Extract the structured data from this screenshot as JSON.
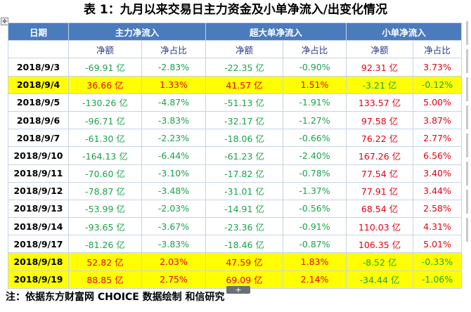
{
  "title": "表 1：九月以来交易日主力资金及小单净流入/出变化情况",
  "headers": {
    "date": "日期",
    "main": "主力净流入",
    "super": "超大单净流入",
    "small": "小单净流入"
  },
  "subheaders": [
    "净额",
    "净占比",
    "净额",
    "净占比",
    "净额",
    "净占比"
  ],
  "rows": [
    {
      "date": "2018/9/3",
      "cells": [
        "-69.91 亿",
        "-2.83%",
        "-22.35 亿",
        "-0.90%",
        "92.31 亿",
        "3.73%"
      ],
      "highlight": false
    },
    {
      "date": "2018/9/4",
      "cells": [
        "36.66 亿",
        "1.33%",
        "41.57 亿",
        "1.51%",
        "-3.21 亿",
        "-0.12%"
      ],
      "highlight": true
    },
    {
      "date": "2018/9/5",
      "cells": [
        "-130.26 亿",
        "-4.87%",
        "-51.13 亿",
        "-1.91%",
        "133.57 亿",
        "5.00%"
      ],
      "highlight": false
    },
    {
      "date": "2018/9/6",
      "cells": [
        "-96.71 亿",
        "-3.83%",
        "-32.17 亿",
        "-1.27%",
        "97.58 亿",
        "3.87%"
      ],
      "highlight": false
    },
    {
      "date": "2018/9/7",
      "cells": [
        "-61.30 亿",
        "-2.23%",
        "-18.06 亿",
        "-0.66%",
        "76.22 亿",
        "2.77%"
      ],
      "highlight": false
    },
    {
      "date": "2018/9/10",
      "cells": [
        "-164.13 亿",
        "-6.44%",
        "-61.23 亿",
        "-2.40%",
        "167.26 亿",
        "6.56%"
      ],
      "highlight": false
    },
    {
      "date": "2018/9/11",
      "cells": [
        "-70.60 亿",
        "-3.10%",
        "-17.82 亿",
        "-0.78%",
        "77.54 亿",
        "3.40%"
      ],
      "highlight": false
    },
    {
      "date": "2018/9/12",
      "cells": [
        "-78.87 亿",
        "-3.48%",
        "-31.01 亿",
        "-1.37%",
        "77.91 亿",
        "3.44%"
      ],
      "highlight": false
    },
    {
      "date": "2018/9/13",
      "cells": [
        "-53.99 亿",
        "-2.03%",
        "-14.91 亿",
        "-0.56%",
        "68.54 亿",
        "2.58%"
      ],
      "highlight": false
    },
    {
      "date": "2018/9/14",
      "cells": [
        "-93.65 亿",
        "-3.67%",
        "-23.36 亿",
        "-0.91%",
        "110.03 亿",
        "4.31%"
      ],
      "highlight": false
    },
    {
      "date": "2018/9/17",
      "cells": [
        "-81.26 亿",
        "-3.83%",
        "-18.46 亿",
        "-0.87%",
        "106.35 亿",
        "5.01%"
      ],
      "highlight": false
    },
    {
      "date": "2018/9/18",
      "cells": [
        "52.82 亿",
        "2.03%",
        "47.59 亿",
        "1.83%",
        "-8.52 亿",
        "-0.33%"
      ],
      "highlight": true
    },
    {
      "date": "2018/9/19",
      "cells": [
        "88.85 亿",
        "2.75%",
        "69.09 亿",
        "2.14%",
        "-34.44 亿",
        "-1.06%"
      ],
      "highlight": true
    }
  ],
  "note": "注：依据东方财富网 CHOICE 数据绘制 和信研究",
  "colors": {
    "header_bg": "#4a7bbd",
    "positive": "#e60012",
    "negative": "#1aa34a",
    "highlight": "#ffff00"
  },
  "icons": {
    "move_handle": "move-icon",
    "add_handle": "plus-icon"
  }
}
